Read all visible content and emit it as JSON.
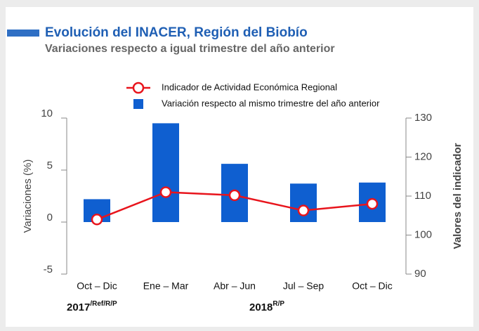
{
  "chart_data": {
    "type": "bar_line",
    "title": "Evolución del INACER, Región del Biobío",
    "subtitle": "Variaciones respecto a igual trimestre del año anterior",
    "categories": [
      "Oct – Dic",
      "Ene – Mar",
      "Abr – Jun",
      "Jul – Sep",
      "Oct – Dic"
    ],
    "series": [
      {
        "name": "Indicador de Actividad Económica Regional",
        "type": "line",
        "axis": "y2",
        "color": "#e8141c",
        "values": [
          104,
          111,
          110.2,
          106.3,
          108
        ]
      },
      {
        "name": "Variación respecto al mismo trimestre del año anterior",
        "type": "bar",
        "axis": "y",
        "color": "#0f5fd0",
        "values": [
          2.2,
          9.5,
          5.6,
          3.7,
          3.8
        ]
      }
    ],
    "ylabel": "Variaciones (%)",
    "y2label": "Valores del indicador",
    "ylim": [
      -5,
      10
    ],
    "yticks": [
      -5,
      0,
      5,
      10
    ],
    "y2lim": [
      90,
      130
    ],
    "y2ticks": [
      90,
      100,
      110,
      120,
      130
    ],
    "annotations": [
      {
        "text": "2017",
        "sup": "/Ref/R/P"
      },
      {
        "text": "2018",
        "sup": "R/P"
      }
    ],
    "grid": false
  }
}
